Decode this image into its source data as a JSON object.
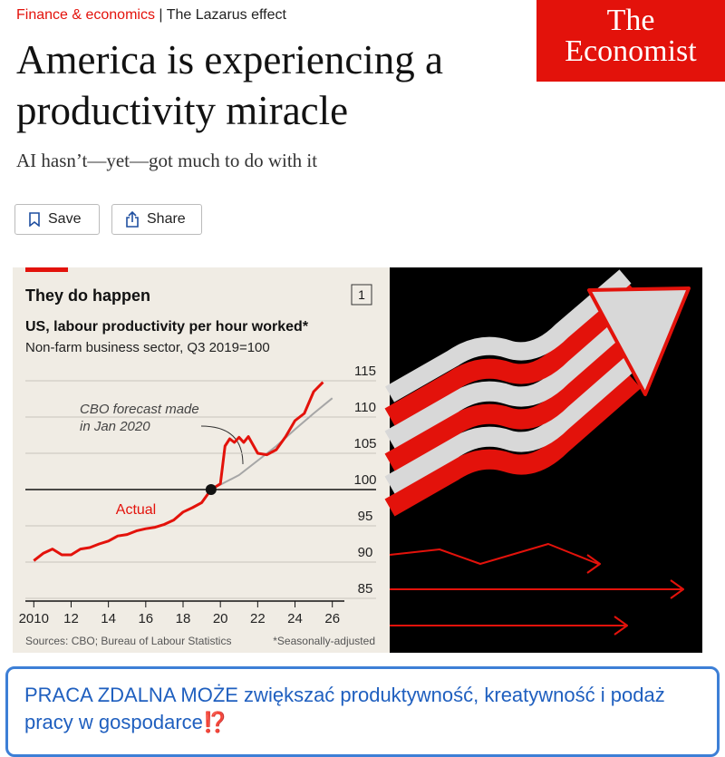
{
  "header": {
    "section": "Finance & economics",
    "topic": "The Lazarus effect",
    "logo": [
      "The",
      "Economist"
    ]
  },
  "article": {
    "title": "America is experiencing a productivity miracle",
    "subtitle": "AI hasn’t—yet—got much to do with it",
    "actions": [
      "Save",
      "Share"
    ]
  },
  "chart_data": {
    "type": "line",
    "number": "1",
    "title": "They do happen",
    "subtitle": "US, labour productivity per hour worked*",
    "subtitle2": "Non-farm business sector, Q3 2019=100",
    "source": "Sources: CBO; Bureau of Labour Statistics",
    "note": "*Seasonally-adjusted",
    "xlim": [
      2009.5,
      2026.5
    ],
    "ylim": [
      84,
      117
    ],
    "baseline": 100,
    "xticks": [
      2010,
      {
        "value": 2012,
        "label": "12"
      },
      {
        "value": 2014,
        "label": "14"
      },
      {
        "value": 2016,
        "label": "16"
      },
      {
        "value": 2018,
        "label": "18"
      },
      {
        "value": 2020,
        "label": "20"
      },
      {
        "value": 2022,
        "label": "22"
      },
      {
        "value": 2024,
        "label": "24"
      },
      {
        "value": 2026,
        "label": "26"
      }
    ],
    "yticks": [
      85,
      90,
      95,
      100,
      105,
      110,
      115
    ],
    "grid": true,
    "series": [
      {
        "name": "Actual",
        "color": "#e3120b",
        "x": [
          2010,
          2010.5,
          2011,
          2011.5,
          2012,
          2012.5,
          2013,
          2013.5,
          2014,
          2014.5,
          2015,
          2015.5,
          2016,
          2016.5,
          2017,
          2017.5,
          2018,
          2018.5,
          2019,
          2019.5,
          2020,
          2020.25,
          2020.5,
          2020.75,
          2021,
          2021.25,
          2021.5,
          2022,
          2022.5,
          2023,
          2023.5,
          2024,
          2024.5,
          2025,
          2025.5
        ],
        "values": [
          90.2,
          91.2,
          91.8,
          91.0,
          91.0,
          91.8,
          92.0,
          92.5,
          92.9,
          93.6,
          93.8,
          94.3,
          94.6,
          94.8,
          95.2,
          95.8,
          96.9,
          97.5,
          98.2,
          100,
          100.8,
          106,
          107,
          106.5,
          107.2,
          106.5,
          107.3,
          105,
          104.8,
          105.5,
          107.3,
          109.5,
          110.5,
          113.5,
          114.8
        ]
      },
      {
        "name": "CBO forecast made in Jan 2020",
        "color": "#a6a6a6",
        "x": [
          2019.5,
          2021,
          2022,
          2023,
          2024,
          2025,
          2026
        ],
        "values": [
          100,
          102,
          104,
          106,
          108.3,
          110.5,
          112.6
        ]
      }
    ]
  },
  "banner": {
    "text": "PRACA ZDALNA MOŻE zwiększać produktywność, kreatywność i podaż pracy w gospodarce⁉️"
  }
}
